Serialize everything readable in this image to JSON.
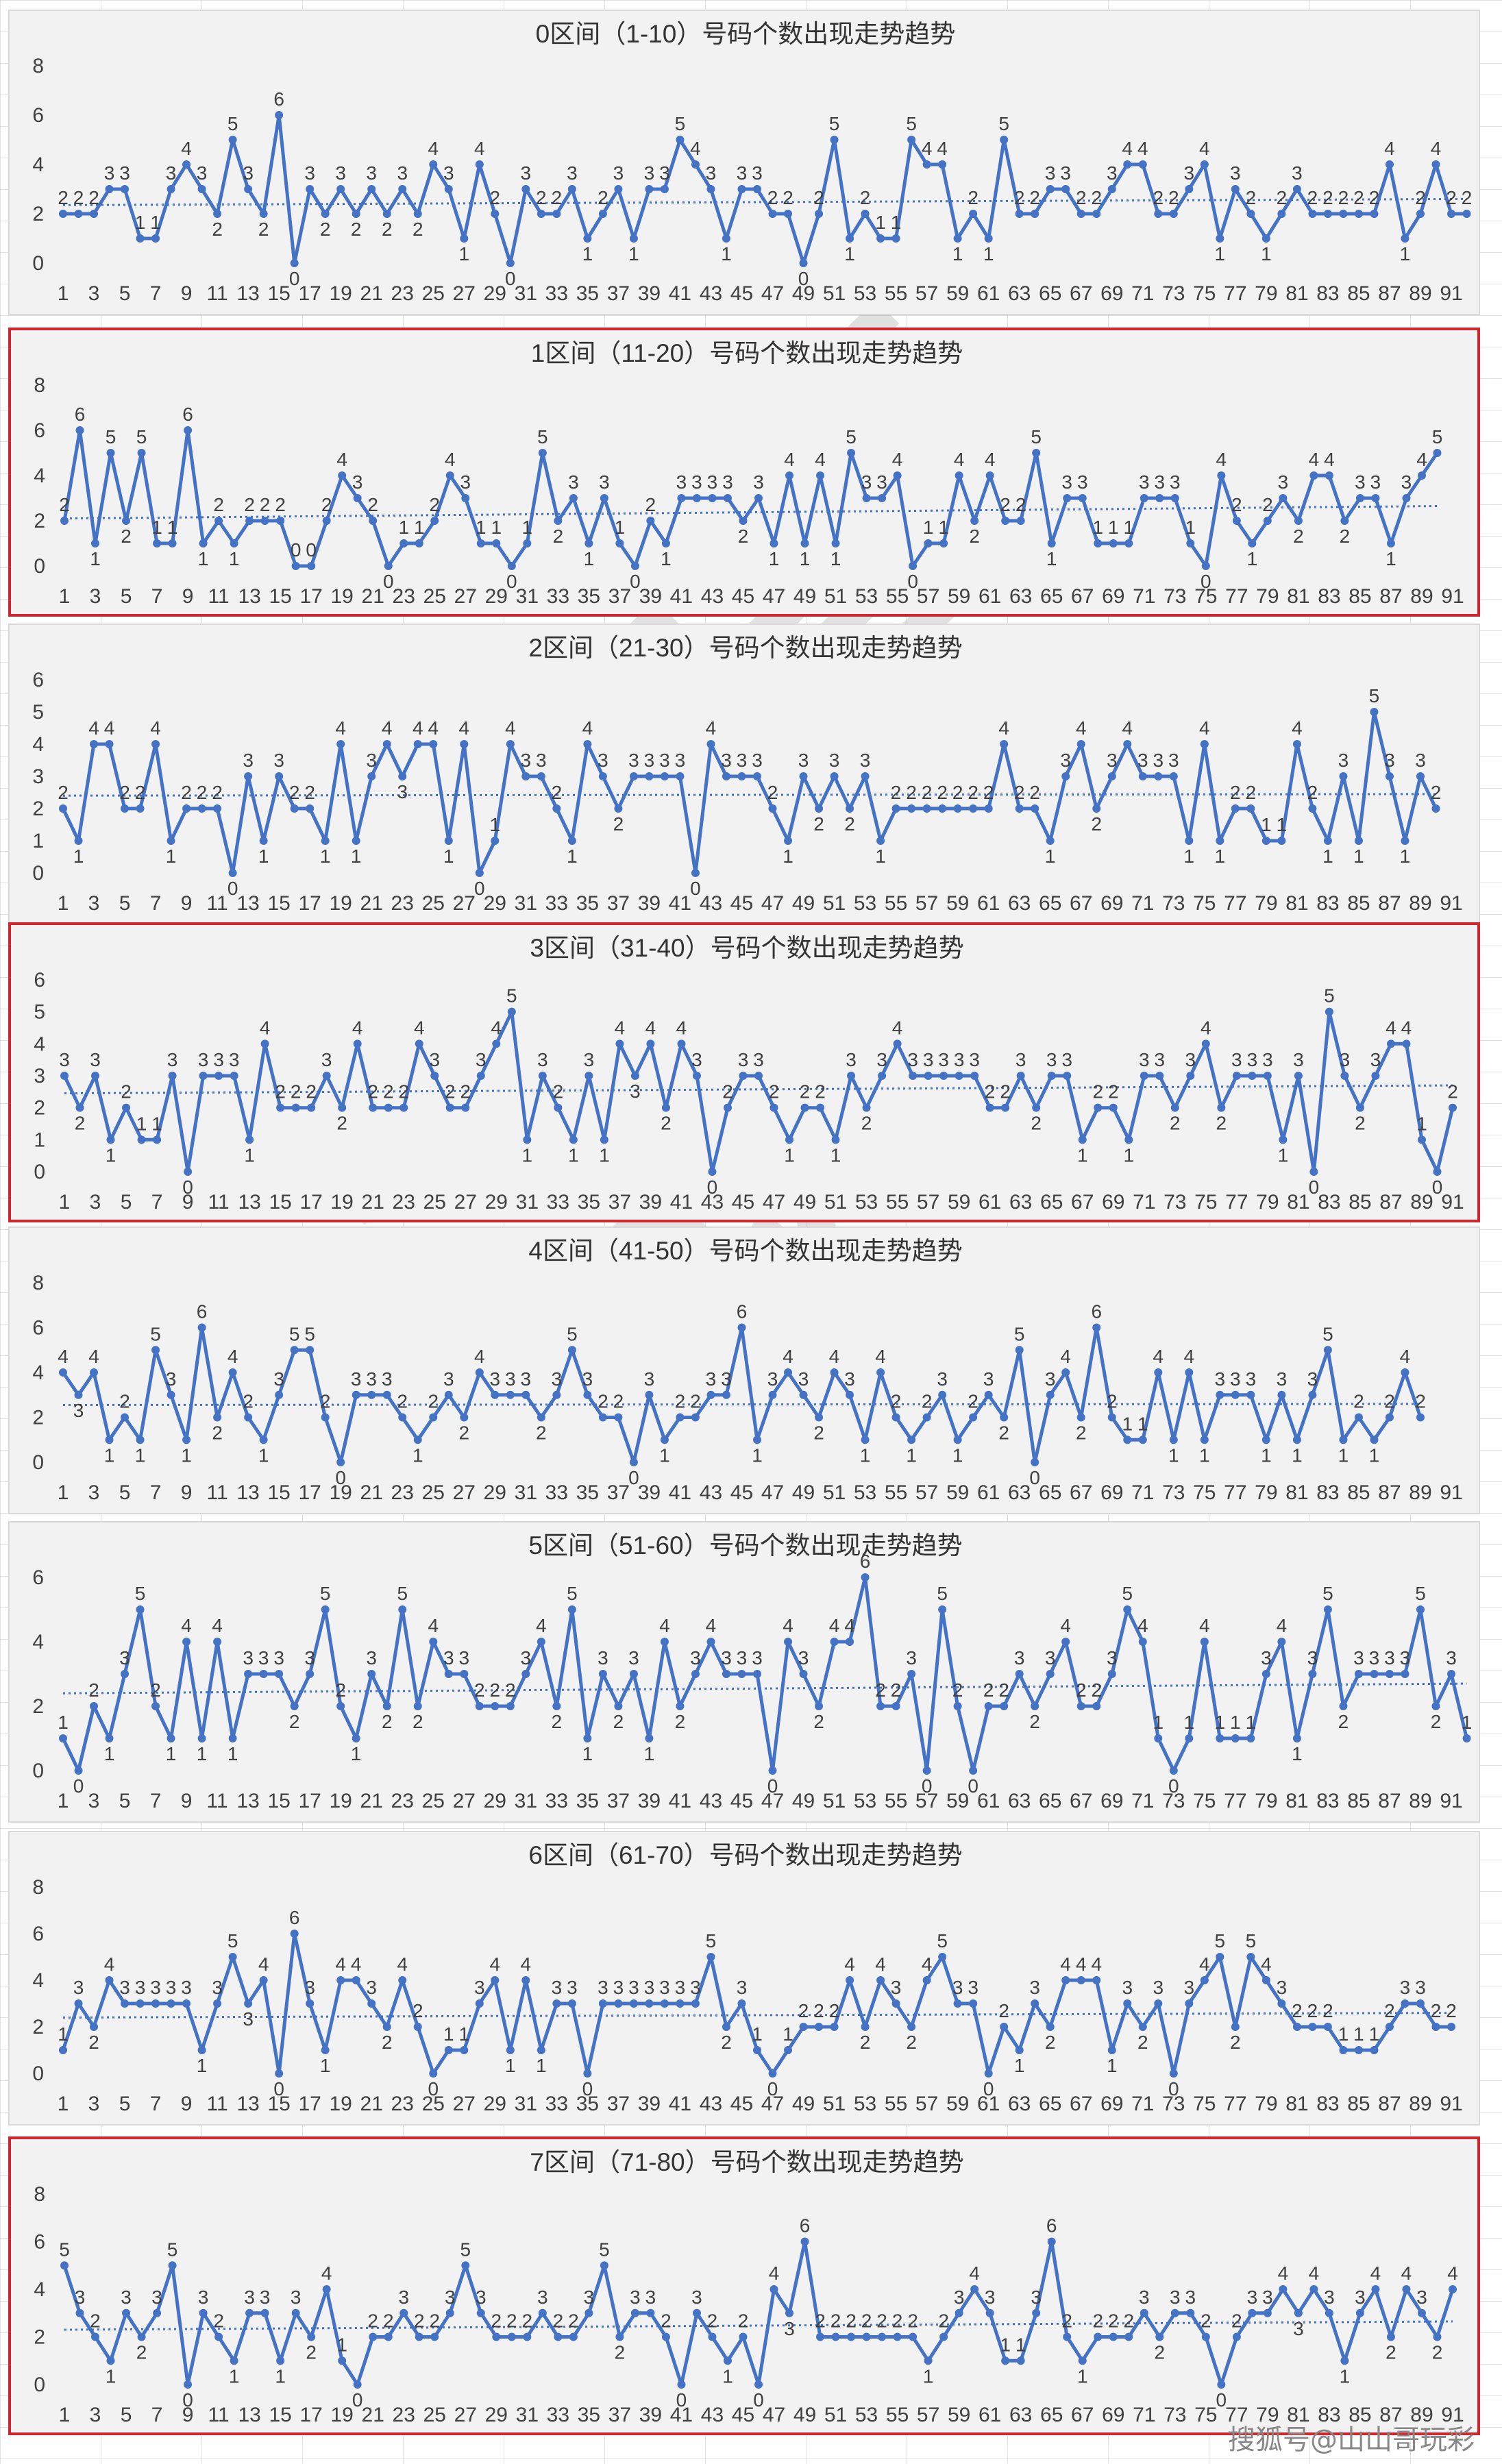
{
  "colors": {
    "line": "#4472c4",
    "trend": "#4472c4",
    "panel_bg": "#f2f2f2",
    "highlight": "#d1262b"
  },
  "watermark": "山山哥玩彩",
  "credit": "搜狐号@山山哥玩彩",
  "chart_data": [
    {
      "type": "line",
      "title": "0区间（1-10）号码个数出现走势趋势",
      "highlighted": false,
      "ylim": [
        0,
        8
      ],
      "yticks": [
        0,
        2,
        4,
        6,
        8
      ],
      "xticks": [
        1,
        3,
        5,
        7,
        9,
        11,
        13,
        15,
        17,
        19,
        21,
        23,
        25,
        27,
        29,
        31,
        33,
        35,
        37,
        39,
        41,
        43,
        45,
        47,
        49,
        51,
        53,
        55,
        57,
        59,
        61,
        63,
        65,
        67,
        69,
        71,
        73,
        75,
        77,
        79,
        81,
        83,
        85,
        87,
        89,
        91
      ],
      "values": [
        2,
        2,
        2,
        3,
        3,
        1,
        1,
        3,
        4,
        3,
        2,
        5,
        3,
        2,
        6,
        0,
        3,
        2,
        3,
        2,
        3,
        2,
        3,
        2,
        4,
        3,
        1,
        4,
        2,
        0,
        3,
        2,
        2,
        3,
        1,
        2,
        3,
        1,
        3,
        3,
        5,
        4,
        3,
        1,
        3,
        3,
        2,
        2,
        0,
        2,
        5,
        1,
        2,
        1,
        1,
        5,
        4,
        4,
        1,
        2,
        1,
        5,
        2,
        2,
        3,
        3,
        2,
        2,
        3,
        4,
        4,
        2,
        2,
        3,
        4,
        1,
        3,
        2,
        1,
        2,
        3,
        2,
        2,
        2,
        2,
        2,
        4,
        1,
        2,
        4,
        2,
        2
      ],
      "trend": [
        2.35,
        2.6
      ]
    },
    {
      "type": "line",
      "title": "1区间（11-20）号码个数出现走势趋势",
      "highlighted": true,
      "ylim": [
        0,
        8
      ],
      "yticks": [
        0,
        2,
        4,
        6,
        8
      ],
      "xticks": [
        1,
        3,
        5,
        7,
        9,
        11,
        13,
        15,
        17,
        19,
        21,
        23,
        25,
        27,
        29,
        31,
        33,
        35,
        37,
        39,
        41,
        43,
        45,
        47,
        49,
        51,
        53,
        55,
        57,
        59,
        61,
        63,
        65,
        67,
        69,
        71,
        73,
        75,
        77,
        79,
        81,
        83,
        85,
        87,
        89,
        91
      ],
      "values": [
        2,
        6,
        1,
        5,
        2,
        5,
        1,
        1,
        6,
        1,
        2,
        1,
        2,
        2,
        2,
        0,
        0,
        2,
        4,
        3,
        2,
        0,
        1,
        1,
        2,
        4,
        3,
        1,
        1,
        0,
        1,
        5,
        2,
        3,
        1,
        3,
        1,
        0,
        2,
        1,
        3,
        3,
        3,
        3,
        2,
        3,
        1,
        4,
        1,
        4,
        1,
        5,
        3,
        3,
        4,
        0,
        1,
        1,
        4,
        2,
        4,
        2,
        2,
        5,
        1,
        3,
        3,
        1,
        1,
        1,
        3,
        3,
        3,
        1,
        0,
        4,
        2,
        1,
        2,
        3,
        2,
        4,
        4,
        2,
        3,
        3,
        1,
        3,
        4,
        5
      ],
      "trend": [
        2.1,
        2.65
      ]
    },
    {
      "type": "line",
      "title": "2区间（21-30）号码个数出现走势趋势",
      "highlighted": false,
      "ylim": [
        0,
        6
      ],
      "yticks": [
        0,
        1,
        2,
        3,
        4,
        5,
        6
      ],
      "xticks": [
        1,
        3,
        5,
        7,
        9,
        11,
        13,
        15,
        17,
        19,
        21,
        23,
        25,
        27,
        29,
        31,
        33,
        35,
        37,
        39,
        41,
        43,
        45,
        47,
        49,
        51,
        53,
        55,
        57,
        59,
        61,
        63,
        65,
        67,
        69,
        71,
        73,
        75,
        77,
        79,
        81,
        83,
        85,
        87,
        89,
        91
      ],
      "values": [
        2,
        1,
        4,
        4,
        2,
        2,
        4,
        1,
        2,
        2,
        2,
        0,
        3,
        1,
        3,
        2,
        2,
        1,
        4,
        1,
        3,
        4,
        3,
        4,
        4,
        1,
        4,
        0,
        1,
        4,
        3,
        3,
        2,
        1,
        4,
        3,
        2,
        3,
        3,
        3,
        3,
        0,
        4,
        3,
        3,
        3,
        2,
        1,
        3,
        2,
        3,
        2,
        3,
        1,
        2,
        2,
        2,
        2,
        2,
        2,
        2,
        4,
        2,
        2,
        1,
        3,
        4,
        2,
        3,
        4,
        3,
        3,
        3,
        1,
        4,
        1,
        2,
        2,
        1,
        1,
        4,
        2,
        1,
        3,
        1,
        5,
        3,
        1,
        3,
        2
      ],
      "trend": [
        2.4,
        2.45
      ]
    },
    {
      "type": "line",
      "title": "3区间（31-40）号码个数出现走势趋势",
      "highlighted": true,
      "ylim": [
        0,
        6
      ],
      "yticks": [
        0,
        1,
        2,
        3,
        4,
        5,
        6
      ],
      "xticks": [
        1,
        3,
        5,
        7,
        9,
        11,
        13,
        15,
        17,
        19,
        21,
        23,
        25,
        27,
        29,
        31,
        33,
        35,
        37,
        39,
        41,
        43,
        45,
        47,
        49,
        51,
        53,
        55,
        57,
        59,
        61,
        63,
        65,
        67,
        69,
        71,
        73,
        75,
        77,
        79,
        81,
        83,
        85,
        87,
        89,
        91
      ],
      "values": [
        3,
        2,
        3,
        1,
        2,
        1,
        1,
        3,
        0,
        3,
        3,
        3,
        1,
        4,
        2,
        2,
        2,
        3,
        2,
        4,
        2,
        2,
        2,
        4,
        3,
        2,
        2,
        3,
        4,
        5,
        1,
        3,
        2,
        1,
        3,
        1,
        4,
        3,
        4,
        2,
        4,
        3,
        0,
        2,
        3,
        3,
        2,
        1,
        2,
        2,
        1,
        3,
        2,
        3,
        4,
        3,
        3,
        3,
        3,
        3,
        2,
        2,
        3,
        2,
        3,
        3,
        1,
        2,
        2,
        1,
        3,
        3,
        2,
        3,
        4,
        2,
        3,
        3,
        3,
        1,
        3,
        0,
        5,
        3,
        2,
        3,
        4,
        4,
        1,
        0,
        2
      ],
      "trend": [
        2.45,
        2.7
      ]
    },
    {
      "type": "line",
      "title": "4区间（41-50）号码个数出现走势趋势",
      "highlighted": false,
      "ylim": [
        0,
        8
      ],
      "yticks": [
        0,
        2,
        4,
        6,
        8
      ],
      "xticks": [
        1,
        3,
        5,
        7,
        9,
        11,
        13,
        15,
        17,
        19,
        21,
        23,
        25,
        27,
        29,
        31,
        33,
        35,
        37,
        39,
        41,
        43,
        45,
        47,
        49,
        51,
        53,
        55,
        57,
        59,
        61,
        63,
        65,
        67,
        69,
        71,
        73,
        75,
        77,
        79,
        81,
        83,
        85,
        87,
        89,
        91
      ],
      "values": [
        4,
        3,
        4,
        1,
        2,
        1,
        5,
        3,
        1,
        6,
        2,
        4,
        2,
        1,
        3,
        5,
        5,
        2,
        0,
        3,
        3,
        3,
        2,
        1,
        2,
        3,
        2,
        4,
        3,
        3,
        3,
        2,
        3,
        5,
        3,
        2,
        2,
        0,
        3,
        1,
        2,
        2,
        3,
        3,
        6,
        1,
        3,
        4,
        3,
        2,
        4,
        3,
        1,
        4,
        2,
        1,
        2,
        3,
        1,
        2,
        3,
        2,
        5,
        0,
        3,
        4,
        2,
        6,
        2,
        1,
        1,
        4,
        1,
        4,
        1,
        3,
        3,
        3,
        1,
        3,
        1,
        3,
        5,
        1,
        2,
        1,
        2,
        4,
        2
      ],
      "trend": [
        2.55,
        2.6
      ]
    },
    {
      "type": "line",
      "title": "5区间（51-60）号码个数出现走势趋势",
      "highlighted": false,
      "ylim": [
        0,
        6
      ],
      "yticks": [
        0,
        2,
        4,
        6
      ],
      "xticks": [
        1,
        3,
        5,
        7,
        9,
        11,
        13,
        15,
        17,
        19,
        21,
        23,
        25,
        27,
        29,
        31,
        33,
        35,
        37,
        39,
        41,
        43,
        45,
        47,
        49,
        51,
        53,
        55,
        57,
        59,
        61,
        63,
        65,
        67,
        69,
        71,
        73,
        75,
        77,
        79,
        81,
        83,
        85,
        87,
        89,
        91
      ],
      "values": [
        1,
        0,
        2,
        1,
        3,
        5,
        2,
        1,
        4,
        1,
        4,
        1,
        3,
        3,
        3,
        2,
        3,
        5,
        2,
        1,
        3,
        2,
        5,
        2,
        4,
        3,
        3,
        2,
        2,
        2,
        3,
        4,
        2,
        5,
        1,
        3,
        2,
        3,
        1,
        4,
        2,
        3,
        4,
        3,
        3,
        3,
        0,
        4,
        3,
        2,
        4,
        4,
        6,
        2,
        2,
        3,
        0,
        5,
        2,
        0,
        2,
        2,
        3,
        2,
        3,
        4,
        2,
        2,
        3,
        5,
        4,
        1,
        0,
        1,
        4,
        1,
        1,
        1,
        3,
        4,
        1,
        3,
        5,
        2,
        3,
        3,
        3,
        3,
        5,
        2,
        3,
        1
      ],
      "trend": [
        2.4,
        2.7
      ]
    },
    {
      "type": "line",
      "title": "6区间（61-70）号码个数出现走势趋势",
      "highlighted": false,
      "ylim": [
        0,
        8
      ],
      "yticks": [
        0,
        2,
        4,
        6,
        8
      ],
      "xticks": [
        1,
        3,
        5,
        7,
        9,
        11,
        13,
        15,
        17,
        19,
        21,
        23,
        25,
        27,
        29,
        31,
        33,
        35,
        37,
        39,
        41,
        43,
        45,
        47,
        49,
        51,
        53,
        55,
        57,
        59,
        61,
        63,
        65,
        67,
        69,
        71,
        73,
        75,
        77,
        79,
        81,
        83,
        85,
        87,
        89,
        91
      ],
      "values": [
        1,
        3,
        2,
        4,
        3,
        3,
        3,
        3,
        3,
        1,
        3,
        5,
        3,
        4,
        0,
        6,
        3,
        1,
        4,
        4,
        3,
        2,
        4,
        2,
        0,
        1,
        1,
        3,
        4,
        1,
        4,
        1,
        3,
        3,
        0,
        3,
        3,
        3,
        3,
        3,
        3,
        3,
        5,
        2,
        3,
        1,
        0,
        1,
        2,
        2,
        2,
        4,
        2,
        4,
        3,
        2,
        4,
        5,
        3,
        3,
        0,
        2,
        1,
        3,
        2,
        4,
        4,
        4,
        1,
        3,
        2,
        3,
        0,
        3,
        4,
        5,
        2,
        5,
        4,
        3,
        2,
        2,
        2,
        1,
        1,
        1,
        2,
        3,
        3,
        2,
        2
      ],
      "trend": [
        2.4,
        2.6
      ]
    },
    {
      "type": "line",
      "title": "7区间（71-80）号码个数出现走势趋势",
      "highlighted": true,
      "ylim": [
        0,
        8
      ],
      "yticks": [
        0,
        2,
        4,
        6,
        8
      ],
      "xticks": [
        1,
        3,
        5,
        7,
        9,
        11,
        13,
        15,
        17,
        19,
        21,
        23,
        25,
        27,
        29,
        31,
        33,
        35,
        37,
        39,
        41,
        43,
        45,
        47,
        49,
        51,
        53,
        55,
        57,
        59,
        61,
        63,
        65,
        67,
        69,
        71,
        73,
        75,
        77,
        79,
        81,
        83,
        85,
        87,
        89,
        91
      ],
      "values": [
        5,
        3,
        2,
        1,
        3,
        2,
        3,
        5,
        0,
        3,
        2,
        1,
        3,
        3,
        1,
        3,
        2,
        4,
        1,
        0,
        2,
        2,
        3,
        2,
        2,
        3,
        5,
        3,
        2,
        2,
        2,
        3,
        2,
        2,
        3,
        5,
        2,
        3,
        3,
        2,
        0,
        3,
        2,
        1,
        2,
        0,
        4,
        3,
        6,
        2,
        2,
        2,
        2,
        2,
        2,
        2,
        1,
        2,
        3,
        4,
        3,
        1,
        1,
        3,
        6,
        2,
        1,
        2,
        2,
        2,
        3,
        2,
        3,
        3,
        2,
        0,
        2,
        3,
        3,
        4,
        3,
        4,
        3,
        1,
        3,
        4,
        2,
        4,
        3,
        2,
        4
      ],
      "trend": [
        2.3,
        2.65
      ]
    }
  ]
}
